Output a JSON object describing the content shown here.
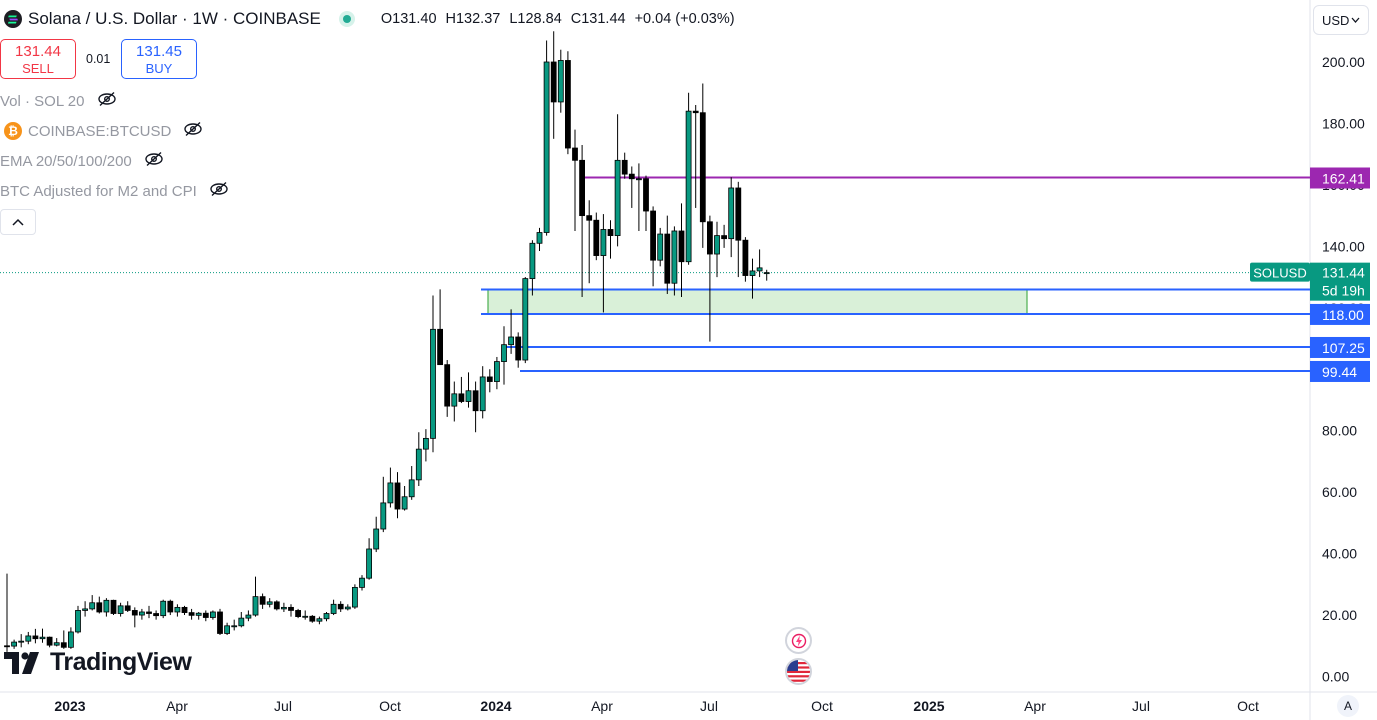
{
  "header": {
    "title": "Solana / U.S. Dollar · 1W · COINBASE",
    "ohlc": {
      "open": "O131.40",
      "high": "H132.37",
      "low": "L128.84",
      "close": "C131.44",
      "change": "+0.04 (+0.03%)"
    }
  },
  "trade": {
    "sell_price": "131.44",
    "sell_label": "SELL",
    "spread": "0.01",
    "buy_price": "131.45",
    "buy_label": "BUY"
  },
  "indicators": [
    {
      "label": "Vol · SOL 20",
      "icon": "eye-off-icon"
    },
    {
      "label": "COINBASE:BTCUSD",
      "icon": "eye-off-icon",
      "badge": "₿"
    },
    {
      "label": "EMA 20/50/100/200",
      "icon": "eye-off-icon"
    },
    {
      "label": "BTC Adjusted for M2 and CPI",
      "icon": "eye-off-icon"
    }
  ],
  "currency": "USD",
  "branding": "TradingView",
  "auto_label": "A",
  "colors": {
    "up": "#089981",
    "down": "#000000",
    "line_blue": "#2962ff",
    "line_purple": "#9c27b0",
    "zone_fill": "#d9f0d8",
    "zone_border": "#4caf50",
    "last_price": "#089981"
  },
  "chart_data": {
    "type": "candlestick",
    "title": "Solana / U.S. Dollar · 1W · COINBASE",
    "x_ticks": [
      "2023",
      "Apr",
      "Jul",
      "Oct",
      "2024",
      "Apr",
      "Jul",
      "Oct",
      "2025",
      "Apr",
      "Jul",
      "Oct"
    ],
    "y_ticks": [
      "200.00",
      "180.00",
      "160.00",
      "140.00",
      "120.00",
      "100.00",
      "80.00",
      "60.00",
      "40.00",
      "20.00",
      "0.00"
    ],
    "ylim": [
      0,
      210
    ],
    "last_price": {
      "symbol": "SOLUSD",
      "value": "131.44",
      "countdown": "5d 19h"
    },
    "levels": [
      {
        "value": 162.41,
        "label": "162.41",
        "color": "#9c27b0"
      },
      {
        "value": 125.97,
        "label": "125.97",
        "color": "#2962ff"
      },
      {
        "value": 118.0,
        "label": "118.00",
        "color": "#2962ff"
      },
      {
        "value": 107.25,
        "label": "107.25",
        "color": "#2962ff"
      },
      {
        "value": 99.44,
        "label": "99.44",
        "color": "#2962ff"
      }
    ],
    "zone": {
      "from": 118.0,
      "to": 125.97
    },
    "candles": [
      [
        10.0,
        33.5,
        8.0,
        9.9
      ],
      [
        9.9,
        12.0,
        9.0,
        11.2
      ],
      [
        11.2,
        13.8,
        9.5,
        11.5
      ],
      [
        11.5,
        14.5,
        10.5,
        13.2
      ],
      [
        13.2,
        15.5,
        10.8,
        12.3
      ],
      [
        12.3,
        15.6,
        11.0,
        12.8
      ],
      [
        12.8,
        13.0,
        9.5,
        10.2
      ],
      [
        10.2,
        12.5,
        9.8,
        11.0
      ],
      [
        11.0,
        15.0,
        9.0,
        9.5
      ],
      [
        9.5,
        16.0,
        9.0,
        14.5
      ],
      [
        14.5,
        23.0,
        14.0,
        21.5
      ],
      [
        21.5,
        24.5,
        19.5,
        22.0
      ],
      [
        22.0,
        26.5,
        21.5,
        24.0
      ],
      [
        24.0,
        26.0,
        20.5,
        21.0
      ],
      [
        21.0,
        25.5,
        19.5,
        24.8
      ],
      [
        24.8,
        25.0,
        20.0,
        20.5
      ],
      [
        20.5,
        24.0,
        19.5,
        23.0
      ],
      [
        23.0,
        24.5,
        21.0,
        21.5
      ],
      [
        21.5,
        22.5,
        16.0,
        20.0
      ],
      [
        20.0,
        22.0,
        18.5,
        21.0
      ],
      [
        21.0,
        23.0,
        19.0,
        20.5
      ],
      [
        20.5,
        21.5,
        18.5,
        19.8
      ],
      [
        19.8,
        25.0,
        19.0,
        24.5
      ],
      [
        24.5,
        25.0,
        20.0,
        21.0
      ],
      [
        21.0,
        23.5,
        19.5,
        22.5
      ],
      [
        22.5,
        23.0,
        20.0,
        20.8
      ],
      [
        20.8,
        22.0,
        18.5,
        19.9
      ],
      [
        19.9,
        21.0,
        18.5,
        20.6
      ],
      [
        20.6,
        21.5,
        18.0,
        19.2
      ],
      [
        19.2,
        21.5,
        18.5,
        21.0
      ],
      [
        21.0,
        22.0,
        13.5,
        14.0
      ],
      [
        14.0,
        17.5,
        13.5,
        16.5
      ],
      [
        16.5,
        18.5,
        15.0,
        16.5
      ],
      [
        16.5,
        21.0,
        16.0,
        19.0
      ],
      [
        19.0,
        21.5,
        18.0,
        20.0
      ],
      [
        20.0,
        32.5,
        19.5,
        26.0
      ],
      [
        26.0,
        27.0,
        22.0,
        23.5
      ],
      [
        23.5,
        25.5,
        22.5,
        24.3
      ],
      [
        24.3,
        24.8,
        21.5,
        22.0
      ],
      [
        22.0,
        24.0,
        21.0,
        22.5
      ],
      [
        22.5,
        23.5,
        19.5,
        21.5
      ],
      [
        21.5,
        22.0,
        19.0,
        19.5
      ],
      [
        19.5,
        21.5,
        18.5,
        19.6
      ],
      [
        19.6,
        20.0,
        17.5,
        18.0
      ],
      [
        18.0,
        19.5,
        17.0,
        18.8
      ],
      [
        18.8,
        21.0,
        18.0,
        20.5
      ],
      [
        20.5,
        25.0,
        20.0,
        23.5
      ],
      [
        23.5,
        24.5,
        21.0,
        22.0
      ],
      [
        22.0,
        23.5,
        21.5,
        22.6
      ],
      [
        22.6,
        30.0,
        22.0,
        29.0
      ],
      [
        29.0,
        33.0,
        28.0,
        32.0
      ],
      [
        32.0,
        45.0,
        31.5,
        41.5
      ],
      [
        41.5,
        52.0,
        40.5,
        48.0
      ],
      [
        48.0,
        65.0,
        47.0,
        56.5
      ],
      [
        56.5,
        68.0,
        55.0,
        63.0
      ],
      [
        63.0,
        66.5,
        51.5,
        54.5
      ],
      [
        54.5,
        62.0,
        54.0,
        58.5
      ],
      [
        58.5,
        68.5,
        57.5,
        64.0
      ],
      [
        64.0,
        79.5,
        62.0,
        74.0
      ],
      [
        74.0,
        80.5,
        70.0,
        77.5
      ],
      [
        77.5,
        124.0,
        73.0,
        113.0
      ],
      [
        113.0,
        126.0,
        102.0,
        101.5
      ],
      [
        101.5,
        103.0,
        84.5,
        88.0
      ],
      [
        88.0,
        96.0,
        83.0,
        92.0
      ],
      [
        92.0,
        97.5,
        89.0,
        89.5
      ],
      [
        89.5,
        99.0,
        87.5,
        93.0
      ],
      [
        93.0,
        96.0,
        79.5,
        86.5
      ],
      [
        86.5,
        101.0,
        84.0,
        97.5
      ],
      [
        97.5,
        100.0,
        92.5,
        96.0
      ],
      [
        96.0,
        104.0,
        93.5,
        102.5
      ],
      [
        102.5,
        114.0,
        95.0,
        108.0
      ],
      [
        108.0,
        119.5,
        105.0,
        110.5
      ],
      [
        110.5,
        112.0,
        100.5,
        103.0
      ],
      [
        103.0,
        130.0,
        102.0,
        129.5
      ],
      [
        129.5,
        142.0,
        124.0,
        141.0
      ],
      [
        141.0,
        146.0,
        138.5,
        144.5
      ],
      [
        144.5,
        207.0,
        143.5,
        200.0
      ],
      [
        200.0,
        210.0,
        175.0,
        187.0
      ],
      [
        187.0,
        204.0,
        183.5,
        200.5
      ],
      [
        200.5,
        203.5,
        170.0,
        172.0
      ],
      [
        172.0,
        178.0,
        145.0,
        168.0
      ],
      [
        168.0,
        173.0,
        123.5,
        150.0
      ],
      [
        150.0,
        155.0,
        128.0,
        148.5
      ],
      [
        148.5,
        151.0,
        135.5,
        137.0
      ],
      [
        137.0,
        150.5,
        118.5,
        145.5
      ],
      [
        145.5,
        148.5,
        136.0,
        143.5
      ],
      [
        143.5,
        183.0,
        140.0,
        168.0
      ],
      [
        168.0,
        170.5,
        162.0,
        163.5
      ],
      [
        163.5,
        166.0,
        152.5,
        162.0
      ],
      [
        162.0,
        167.0,
        145.0,
        162.0
      ],
      [
        162.0,
        163.0,
        145.0,
        151.5
      ],
      [
        151.5,
        153.0,
        127.0,
        135.5
      ],
      [
        135.5,
        146.0,
        133.5,
        144.0
      ],
      [
        144.0,
        150.0,
        124.5,
        128.0
      ],
      [
        128.0,
        146.5,
        124.0,
        145.0
      ],
      [
        145.0,
        154.0,
        123.5,
        135.0
      ],
      [
        135.0,
        190.0,
        134.0,
        184.0
      ],
      [
        184.0,
        186.0,
        152.5,
        183.5
      ],
      [
        183.5,
        193.0,
        139.5,
        148.0
      ],
      [
        148.0,
        150.0,
        109.0,
        137.5
      ],
      [
        137.5,
        148.0,
        130.0,
        143.5
      ],
      [
        143.5,
        147.0,
        139.5,
        142.5
      ],
      [
        142.5,
        162.5,
        136.5,
        159.0
      ],
      [
        159.0,
        161.0,
        130.0,
        142.0
      ],
      [
        142.0,
        143.0,
        128.5,
        130.5
      ],
      [
        130.5,
        136.0,
        123.0,
        132.0
      ],
      [
        132.0,
        139.0,
        130.0,
        133.0
      ],
      [
        131.4,
        132.37,
        128.84,
        131.44
      ]
    ]
  }
}
